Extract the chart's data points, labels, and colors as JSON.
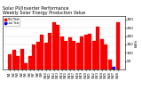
{
  "title": "Solar PV/Inverter Performance\nWeekly Solar Energy Production Value",
  "title_fontsize": 3.5,
  "ylabel": "kWh",
  "ylabel_fontsize": 3.0,
  "ylim": [
    0,
    320
  ],
  "yticks": [
    50,
    100,
    150,
    200,
    250,
    300
  ],
  "ytick_fontsize": 3.0,
  "xtick_fontsize": 2.5,
  "bar_values": [
    90,
    115,
    80,
    125,
    40,
    80,
    150,
    165,
    210,
    160,
    220,
    285,
    265,
    195,
    170,
    190,
    170,
    160,
    195,
    210,
    215,
    170,
    255,
    180,
    150,
    60,
    15,
    285
  ],
  "bar_colors": [
    "#ff0000",
    "#ff0000",
    "#ff0000",
    "#ff0000",
    "#ff0000",
    "#ff0000",
    "#ff0000",
    "#ff0000",
    "#ff0000",
    "#ff0000",
    "#ff0000",
    "#ff0000",
    "#ff0000",
    "#ff0000",
    "#ff0000",
    "#ff0000",
    "#ff0000",
    "#ff0000",
    "#ff0000",
    "#ff0000",
    "#ff0000",
    "#ff0000",
    "#ff0000",
    "#ff0000",
    "#ff0000",
    "#ff0000",
    "#0000ff",
    "#ff0000"
  ],
  "bar_labels": [
    "W1",
    "W2",
    "W3",
    "W4",
    "W5",
    "W6",
    "W7",
    "W8",
    "W9",
    "W10",
    "W11",
    "W12",
    "W13",
    "W14",
    "W15",
    "W16",
    "W17",
    "W18",
    "W19",
    "W20",
    "W21",
    "W22",
    "W23",
    "W24",
    "W25",
    "W26",
    "W27",
    "W28"
  ],
  "background_color": "#ffffff",
  "grid_color": "#aaaaaa",
  "bar_edge_color": "#cc0000",
  "legend_labels": [
    "This Year",
    "Last Year"
  ],
  "legend_colors": [
    "#ff0000",
    "#0000ff"
  ]
}
